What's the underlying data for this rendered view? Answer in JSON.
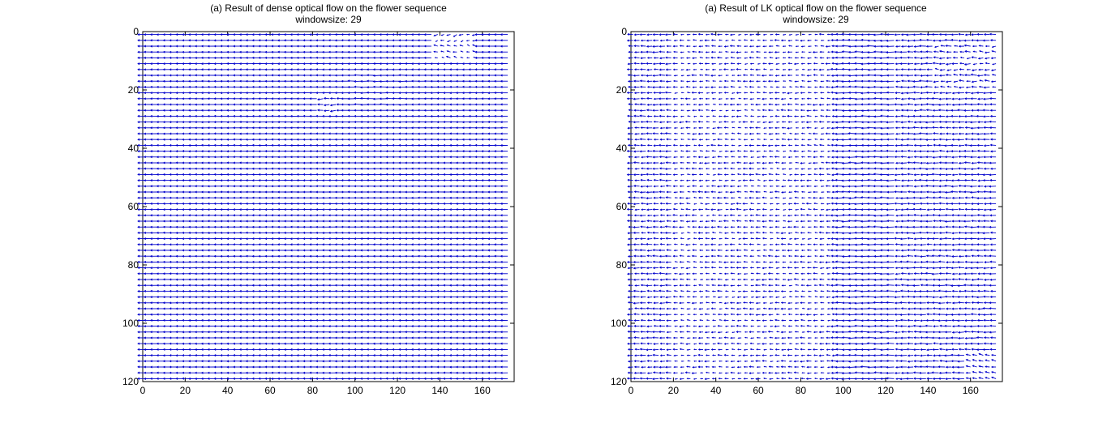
{
  "chart_data": [
    {
      "type": "quiver",
      "title": "(a) Result of dense optical flow on the flower sequence",
      "subtitle": "windowsize: 29",
      "xlabel": "",
      "ylabel": "",
      "xlim": [
        0,
        175
      ],
      "ylim": [
        120,
        0
      ],
      "y_axis_reversed": true,
      "xticks": [
        0,
        20,
        40,
        60,
        80,
        100,
        120,
        140,
        160
      ],
      "yticks": [
        0,
        20,
        40,
        60,
        80,
        100,
        120
      ],
      "grid": false,
      "arrow_color": "#0000cc",
      "grid_step_x": 3,
      "grid_step_y": 2,
      "field": "dominant leftward flow (u ≈ -2.5, v ≈ 0) with disturbed region near x 140-155, y 0-8 and x ~90, y ~25"
    },
    {
      "type": "quiver",
      "title": "(a) Result of LK optical flow on the flower sequence",
      "subtitle": "windowsize: 29",
      "xlabel": "",
      "ylabel": "",
      "xlim": [
        0,
        175
      ],
      "ylim": [
        120,
        0
      ],
      "y_axis_reversed": true,
      "xticks": [
        0,
        20,
        40,
        60,
        80,
        100,
        120,
        140,
        160
      ],
      "yticks": [
        0,
        20,
        40,
        60,
        80,
        100,
        120
      ],
      "grid": false,
      "arrow_color": "#0000cc",
      "grid_step_x": 3,
      "grid_step_y": 2,
      "field": "noisy leftward flow, weaker in x 20-90, strong band around x 100-125, distortion near x 150-175, y 5-20"
    }
  ]
}
